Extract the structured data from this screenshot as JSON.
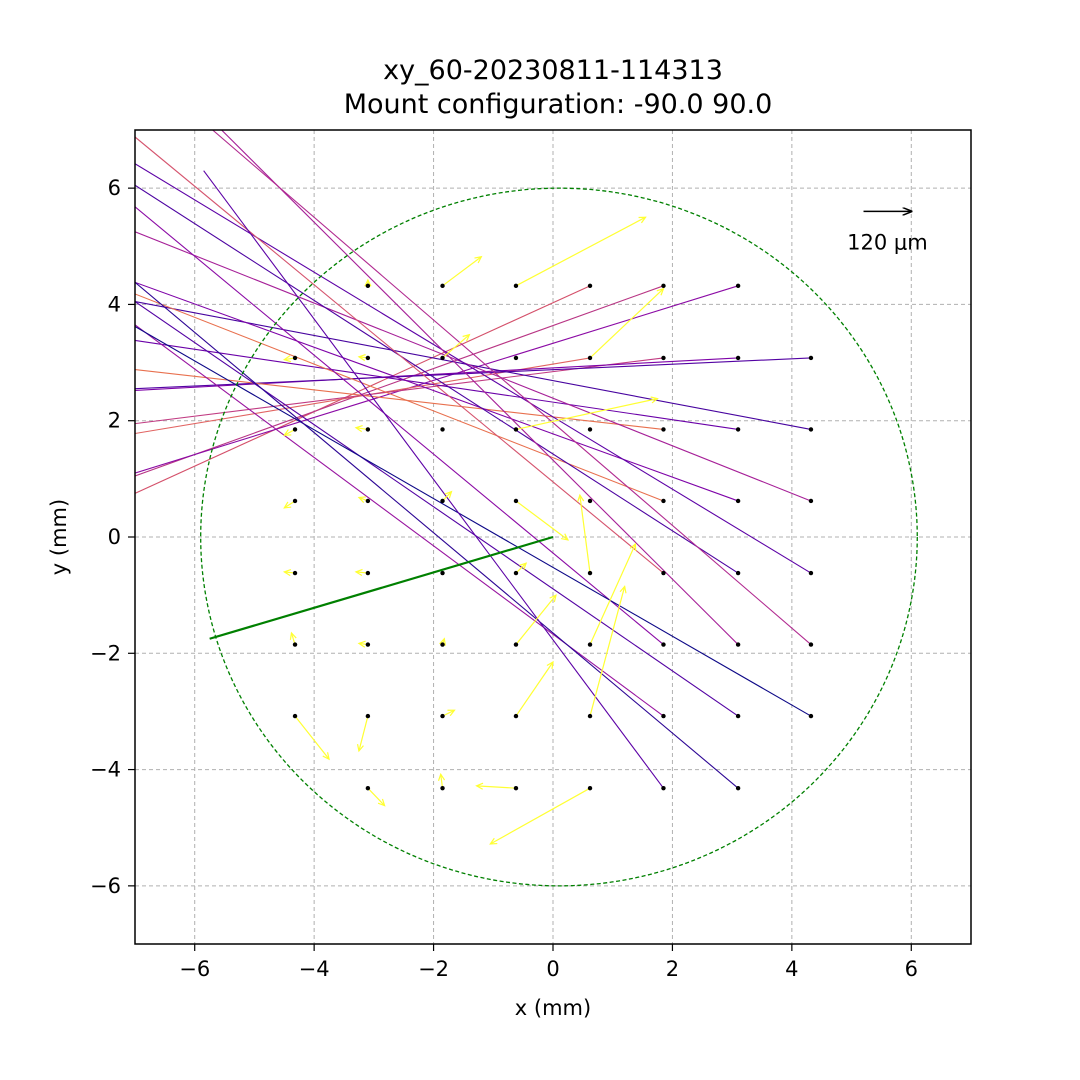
{
  "chart_data": {
    "type": "scatter",
    "title": "xy_60-20230811-114313",
    "subtitle": "Mount configuration: -90.0 90.0",
    "xlabel": "x (mm)",
    "ylabel": "y (mm)",
    "xlim": [
      -7,
      7
    ],
    "ylim": [
      -7,
      7
    ],
    "xticks": [
      -6,
      -4,
      -2,
      0,
      2,
      4,
      6
    ],
    "yticks": [
      -6,
      -4,
      -2,
      0,
      2,
      4,
      6
    ],
    "xtick_labels": [
      "−6",
      "−4",
      "−2",
      "0",
      "2",
      "4",
      "6"
    ],
    "ytick_labels": [
      "−6",
      "−4",
      "−2",
      "0",
      "2",
      "4",
      "6"
    ],
    "grid": true,
    "scale_bar": {
      "label": "120 μm",
      "anchor_x": 5.2,
      "anchor_y": 5.6,
      "length_mm": 0.8
    },
    "circle": {
      "cx": 0.1,
      "cy": 0,
      "r": 6.0,
      "color": "#008000",
      "style": "dashed"
    },
    "main_vector": {
      "x0": 0,
      "y0": 0,
      "x1": -5.75,
      "y1": -1.75,
      "color": "#008000"
    },
    "points": [
      [
        -3.1,
        4.32
      ],
      [
        -1.85,
        4.32
      ],
      [
        -0.62,
        4.32
      ],
      [
        0.62,
        4.32
      ],
      [
        1.85,
        4.32
      ],
      [
        3.1,
        4.32
      ],
      [
        -4.32,
        3.08
      ],
      [
        -3.1,
        3.08
      ],
      [
        -1.85,
        3.08
      ],
      [
        -0.62,
        3.08
      ],
      [
        0.62,
        3.08
      ],
      [
        1.85,
        3.08
      ],
      [
        3.1,
        3.08
      ],
      [
        4.32,
        3.08
      ],
      [
        -4.32,
        1.85
      ],
      [
        -3.1,
        1.85
      ],
      [
        -1.85,
        1.85
      ],
      [
        -0.62,
        1.85
      ],
      [
        0.62,
        1.85
      ],
      [
        1.85,
        1.85
      ],
      [
        3.1,
        1.85
      ],
      [
        4.32,
        1.85
      ],
      [
        -4.32,
        0.62
      ],
      [
        -3.1,
        0.62
      ],
      [
        -1.85,
        0.62
      ],
      [
        -0.62,
        0.62
      ],
      [
        0.62,
        0.62
      ],
      [
        1.85,
        0.62
      ],
      [
        3.1,
        0.62
      ],
      [
        4.32,
        0.62
      ],
      [
        -4.32,
        -0.62
      ],
      [
        -3.1,
        -0.62
      ],
      [
        -1.85,
        -0.62
      ],
      [
        -0.62,
        -0.62
      ],
      [
        0.62,
        -0.62
      ],
      [
        1.85,
        -0.62
      ],
      [
        3.1,
        -0.62
      ],
      [
        4.32,
        -0.62
      ],
      [
        -4.32,
        -1.85
      ],
      [
        -3.1,
        -1.85
      ],
      [
        -1.85,
        -1.85
      ],
      [
        -0.62,
        -1.85
      ],
      [
        0.62,
        -1.85
      ],
      [
        1.85,
        -1.85
      ],
      [
        3.1,
        -1.85
      ],
      [
        4.32,
        -1.85
      ],
      [
        -4.32,
        -3.08
      ],
      [
        -3.1,
        -3.08
      ],
      [
        -1.85,
        -3.08
      ],
      [
        -0.62,
        -3.08
      ],
      [
        0.62,
        -3.08
      ],
      [
        1.85,
        -3.08
      ],
      [
        3.1,
        -3.08
      ],
      [
        4.32,
        -3.08
      ],
      [
        -3.1,
        -4.32
      ],
      [
        -1.85,
        -4.32
      ],
      [
        -0.62,
        -4.32
      ],
      [
        0.62,
        -4.32
      ],
      [
        1.85,
        -4.32
      ],
      [
        3.1,
        -4.32
      ]
    ],
    "short_arrows": {
      "color": "#ffff33",
      "items": [
        [
          -3.1,
          4.32,
          -3.1,
          4.42
        ],
        [
          -1.85,
          4.32,
          -1.2,
          4.82
        ],
        [
          -0.62,
          4.32,
          1.55,
          5.5
        ],
        [
          -4.32,
          3.08,
          -4.5,
          3.05
        ],
        [
          -3.1,
          3.08,
          -3.25,
          3.1
        ],
        [
          -1.85,
          3.08,
          -1.4,
          3.48
        ],
        [
          0.62,
          3.08,
          1.85,
          4.27
        ],
        [
          -4.32,
          1.85,
          -4.5,
          1.75
        ],
        [
          -3.1,
          1.85,
          -3.3,
          1.88
        ],
        [
          -0.62,
          1.85,
          1.75,
          2.38
        ],
        [
          -4.32,
          0.62,
          -4.5,
          0.5
        ],
        [
          -3.1,
          0.62,
          -3.25,
          0.68
        ],
        [
          -1.85,
          0.62,
          -1.7,
          0.78
        ],
        [
          -0.62,
          0.62,
          0.25,
          -0.05
        ],
        [
          0.62,
          -0.62,
          0.45,
          0.72
        ],
        [
          -4.32,
          -0.62,
          -4.5,
          -0.6
        ],
        [
          -3.1,
          -0.62,
          -3.3,
          -0.6
        ],
        [
          -0.62,
          -0.62,
          -0.45,
          -0.45
        ],
        [
          -4.32,
          -1.85,
          -4.38,
          -1.65
        ],
        [
          -3.1,
          -1.85,
          -3.25,
          -1.83
        ],
        [
          -1.85,
          -1.85,
          -1.82,
          -1.75
        ],
        [
          -0.62,
          -1.85,
          0.05,
          -1.0
        ],
        [
          0.62,
          -1.85,
          1.38,
          -0.12
        ],
        [
          -4.32,
          -3.08,
          -3.75,
          -3.82
        ],
        [
          -3.1,
          -3.08,
          -3.25,
          -3.68
        ],
        [
          -1.85,
          -3.08,
          -1.65,
          -2.98
        ],
        [
          -0.62,
          -3.08,
          0.0,
          -2.15
        ],
        [
          0.62,
          -3.08,
          1.2,
          -0.85
        ],
        [
          -3.1,
          -4.32,
          -2.82,
          -4.62
        ],
        [
          -1.85,
          -4.32,
          -1.88,
          -4.08
        ],
        [
          -0.62,
          -4.32,
          -1.28,
          -4.28
        ],
        [
          0.62,
          -4.32,
          -1.05,
          -5.28
        ]
      ]
    },
    "long_lines": {
      "items": [
        [
          0.62,
          4.32,
          -7.0,
          0.75,
          "#d4506a"
        ],
        [
          1.85,
          4.32,
          -7.0,
          1.05,
          "#b83584"
        ],
        [
          3.1,
          4.32,
          -7.0,
          1.1,
          "#8b0aa5"
        ],
        [
          0.62,
          3.08,
          -7.0,
          1.78,
          "#e16462"
        ],
        [
          1.85,
          3.08,
          -7.0,
          1.95,
          "#c13b82"
        ],
        [
          3.1,
          3.08,
          -7.0,
          2.52,
          "#7e03a8"
        ],
        [
          4.32,
          3.08,
          -7.0,
          2.55,
          "#5302a3"
        ],
        [
          1.85,
          1.85,
          -7.0,
          2.88,
          "#e8704e"
        ],
        [
          3.1,
          1.85,
          -7.0,
          3.38,
          "#6a00a8"
        ],
        [
          4.32,
          1.85,
          -7.0,
          4.05,
          "#47039f"
        ],
        [
          1.85,
          0.62,
          -7.0,
          4.18,
          "#e8704e"
        ],
        [
          3.1,
          0.62,
          -7.0,
          4.38,
          "#7e03a8"
        ],
        [
          4.32,
          0.62,
          -7.0,
          5.25,
          "#a62098"
        ],
        [
          3.1,
          -0.62,
          -7.0,
          6.05,
          "#4c02a1"
        ],
        [
          4.32,
          -0.62,
          -7.0,
          6.42,
          "#5c01a6"
        ],
        [
          1.85,
          -0.62,
          -7.0,
          6.88,
          "#d5546e"
        ],
        [
          3.1,
          -1.85,
          -5.55,
          7.0,
          "#a62098"
        ],
        [
          4.32,
          -1.85,
          -5.7,
          7.0,
          "#b12a90"
        ],
        [
          1.85,
          -1.85,
          -7.0,
          5.68,
          "#8b0aa5"
        ],
        [
          1.85,
          -3.08,
          -7.0,
          3.65,
          "#9814a0"
        ],
        [
          3.1,
          -3.08,
          -7.0,
          4.05,
          "#5302a3"
        ],
        [
          4.32,
          -3.08,
          -7.0,
          3.62,
          "#0d0887"
        ],
        [
          3.1,
          -4.32,
          -7.0,
          4.38,
          "#2c0594"
        ],
        [
          1.85,
          -4.32,
          -5.85,
          6.3,
          "#5c01a6"
        ]
      ]
    }
  }
}
